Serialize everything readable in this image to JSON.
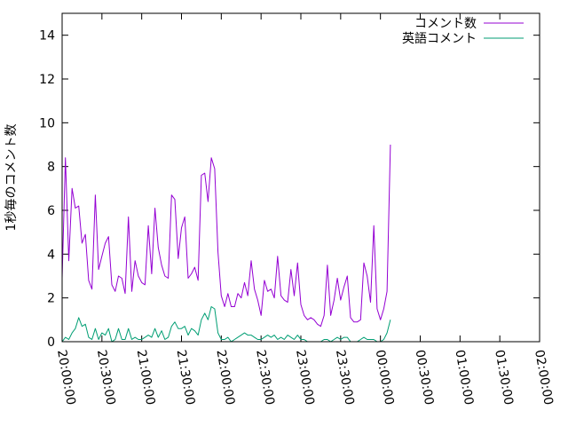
{
  "chart_data": {
    "type": "line",
    "title": "",
    "xlabel": "",
    "ylabel": "1秒毎のコメント数",
    "ylim": [
      0,
      15
    ],
    "yticks": [
      0,
      2,
      4,
      6,
      8,
      10,
      12,
      14
    ],
    "xlim": [
      "20:00:00",
      "02:00:00"
    ],
    "xticks": [
      "20:00:00",
      "20:30:00",
      "21:00:00",
      "21:30:00",
      "22:00:00",
      "22:30:00",
      "23:00:00",
      "23:30:00",
      "00:00:00",
      "00:30:00",
      "01:00:00",
      "01:30:00",
      "02:00:00"
    ],
    "legend_position": "top-right",
    "grid": false,
    "series": [
      {
        "name": "コメント数",
        "color": "#9400d3",
        "points": [
          [
            "20:00:00",
            2.9
          ],
          [
            "20:02:30",
            8.4
          ],
          [
            "20:05:00",
            3.7
          ],
          [
            "20:07:30",
            7.0
          ],
          [
            "20:10:00",
            6.1
          ],
          [
            "20:12:30",
            6.2
          ],
          [
            "20:15:00",
            4.5
          ],
          [
            "20:17:30",
            4.9
          ],
          [
            "20:20:00",
            2.8
          ],
          [
            "20:22:30",
            2.4
          ],
          [
            "20:25:00",
            6.7
          ],
          [
            "20:27:30",
            3.3
          ],
          [
            "20:30:00",
            3.9
          ],
          [
            "20:32:30",
            4.5
          ],
          [
            "20:35:00",
            4.8
          ],
          [
            "20:37:30",
            2.6
          ],
          [
            "20:40:00",
            2.3
          ],
          [
            "20:42:30",
            3.0
          ],
          [
            "20:45:00",
            2.9
          ],
          [
            "20:47:30",
            2.2
          ],
          [
            "20:50:00",
            5.7
          ],
          [
            "20:52:30",
            2.3
          ],
          [
            "20:55:00",
            3.7
          ],
          [
            "20:57:30",
            3.0
          ],
          [
            "21:00:00",
            2.7
          ],
          [
            "21:02:30",
            2.6
          ],
          [
            "21:05:00",
            5.3
          ],
          [
            "21:07:30",
            3.1
          ],
          [
            "21:10:00",
            6.1
          ],
          [
            "21:12:30",
            4.3
          ],
          [
            "21:15:00",
            3.5
          ],
          [
            "21:17:30",
            3.0
          ],
          [
            "21:20:00",
            2.9
          ],
          [
            "21:22:30",
            6.7
          ],
          [
            "21:25:00",
            6.5
          ],
          [
            "21:27:30",
            3.8
          ],
          [
            "21:30:00",
            5.2
          ],
          [
            "21:32:30",
            5.7
          ],
          [
            "21:35:00",
            2.9
          ],
          [
            "21:37:30",
            3.1
          ],
          [
            "21:40:00",
            3.4
          ],
          [
            "21:42:30",
            2.8
          ],
          [
            "21:45:00",
            7.6
          ],
          [
            "21:47:30",
            7.7
          ],
          [
            "21:50:00",
            6.4
          ],
          [
            "21:52:30",
            8.4
          ],
          [
            "21:55:00",
            7.9
          ],
          [
            "21:57:30",
            4.1
          ],
          [
            "22:00:00",
            2.1
          ],
          [
            "22:02:30",
            1.6
          ],
          [
            "22:05:00",
            2.2
          ],
          [
            "22:07:30",
            1.6
          ],
          [
            "22:10:00",
            1.6
          ],
          [
            "22:12:30",
            2.2
          ],
          [
            "22:15:00",
            2.0
          ],
          [
            "22:17:30",
            2.7
          ],
          [
            "22:20:00",
            2.1
          ],
          [
            "22:22:30",
            3.7
          ],
          [
            "22:25:00",
            2.4
          ],
          [
            "22:27:30",
            1.9
          ],
          [
            "22:30:00",
            1.2
          ],
          [
            "22:32:30",
            2.8
          ],
          [
            "22:35:00",
            2.3
          ],
          [
            "22:37:30",
            2.4
          ],
          [
            "22:40:00",
            2.0
          ],
          [
            "22:42:30",
            3.9
          ],
          [
            "22:45:00",
            2.1
          ],
          [
            "22:47:30",
            1.9
          ],
          [
            "22:50:00",
            1.8
          ],
          [
            "22:52:30",
            3.3
          ],
          [
            "22:55:00",
            2.1
          ],
          [
            "22:57:30",
            3.6
          ],
          [
            "23:00:00",
            1.7
          ],
          [
            "23:02:30",
            1.2
          ],
          [
            "23:05:00",
            1.0
          ],
          [
            "23:07:30",
            1.1
          ],
          [
            "23:10:00",
            1.0
          ],
          [
            "23:12:30",
            0.8
          ],
          [
            "23:15:00",
            0.7
          ],
          [
            "23:17:30",
            1.2
          ],
          [
            "23:20:00",
            3.5
          ],
          [
            "23:22:30",
            1.2
          ],
          [
            "23:25:00",
            1.9
          ],
          [
            "23:27:30",
            2.9
          ],
          [
            "23:30:00",
            1.9
          ],
          [
            "23:32:30",
            2.5
          ],
          [
            "23:35:00",
            3.0
          ],
          [
            "23:37:30",
            1.1
          ],
          [
            "23:40:00",
            0.9
          ],
          [
            "23:42:30",
            0.9
          ],
          [
            "23:45:00",
            1.0
          ],
          [
            "23:47:30",
            3.6
          ],
          [
            "23:50:00",
            3.0
          ],
          [
            "23:52:30",
            1.8
          ],
          [
            "23:55:00",
            5.3
          ],
          [
            "23:57:30",
            1.5
          ],
          [
            "00:00:00",
            1.0
          ],
          [
            "00:02:30",
            1.5
          ],
          [
            "00:05:00",
            2.3
          ],
          [
            "00:07:30",
            9.0
          ]
        ]
      },
      {
        "name": "英語コメント",
        "color": "#009e73",
        "points": [
          [
            "20:00:00",
            0.0
          ],
          [
            "20:02:30",
            0.2
          ],
          [
            "20:05:00",
            0.1
          ],
          [
            "20:07:30",
            0.4
          ],
          [
            "20:10:00",
            0.6
          ],
          [
            "20:12:30",
            1.1
          ],
          [
            "20:15:00",
            0.7
          ],
          [
            "20:17:30",
            0.8
          ],
          [
            "20:20:00",
            0.2
          ],
          [
            "20:22:30",
            0.1
          ],
          [
            "20:25:00",
            0.6
          ],
          [
            "20:27:30",
            0.1
          ],
          [
            "20:30:00",
            0.4
          ],
          [
            "20:32:30",
            0.3
          ],
          [
            "20:35:00",
            0.6
          ],
          [
            "20:37:30",
            0.0
          ],
          [
            "20:40:00",
            0.1
          ],
          [
            "20:42:30",
            0.6
          ],
          [
            "20:45:00",
            0.1
          ],
          [
            "20:47:30",
            0.1
          ],
          [
            "20:50:00",
            0.6
          ],
          [
            "20:52:30",
            0.1
          ],
          [
            "20:55:00",
            0.2
          ],
          [
            "20:57:30",
            0.1
          ],
          [
            "21:00:00",
            0.1
          ],
          [
            "21:02:30",
            0.2
          ],
          [
            "21:05:00",
            0.3
          ],
          [
            "21:07:30",
            0.2
          ],
          [
            "21:10:00",
            0.6
          ],
          [
            "21:12:30",
            0.2
          ],
          [
            "21:15:00",
            0.5
          ],
          [
            "21:17:30",
            0.1
          ],
          [
            "21:20:00",
            0.2
          ],
          [
            "21:22:30",
            0.7
          ],
          [
            "21:25:00",
            0.9
          ],
          [
            "21:27:30",
            0.6
          ],
          [
            "21:30:00",
            0.6
          ],
          [
            "21:32:30",
            0.7
          ],
          [
            "21:35:00",
            0.3
          ],
          [
            "21:37:30",
            0.6
          ],
          [
            "21:40:00",
            0.5
          ],
          [
            "21:42:30",
            0.3
          ],
          [
            "21:45:00",
            1.0
          ],
          [
            "21:47:30",
            1.3
          ],
          [
            "21:50:00",
            1.0
          ],
          [
            "21:52:30",
            1.6
          ],
          [
            "21:55:00",
            1.5
          ],
          [
            "21:57:30",
            0.4
          ],
          [
            "22:00:00",
            0.1
          ],
          [
            "22:02:30",
            0.1
          ],
          [
            "22:05:00",
            0.2
          ],
          [
            "22:07:30",
            0.0
          ],
          [
            "22:10:00",
            0.1
          ],
          [
            "22:12:30",
            0.2
          ],
          [
            "22:15:00",
            0.3
          ],
          [
            "22:17:30",
            0.4
          ],
          [
            "22:20:00",
            0.3
          ],
          [
            "22:22:30",
            0.3
          ],
          [
            "22:25:00",
            0.2
          ],
          [
            "22:27:30",
            0.1
          ],
          [
            "22:30:00",
            0.1
          ],
          [
            "22:32:30",
            0.2
          ],
          [
            "22:35:00",
            0.3
          ],
          [
            "22:37:30",
            0.2
          ],
          [
            "22:40:00",
            0.3
          ],
          [
            "22:42:30",
            0.1
          ],
          [
            "22:45:00",
            0.2
          ],
          [
            "22:47:30",
            0.1
          ],
          [
            "22:50:00",
            0.3
          ],
          [
            "22:52:30",
            0.2
          ],
          [
            "22:55:00",
            0.1
          ],
          [
            "22:57:30",
            0.3
          ],
          [
            "23:00:00",
            0.1
          ],
          [
            "23:02:30",
            0.1
          ],
          [
            "23:05:00",
            0.0
          ],
          [
            "23:07:30",
            0.0
          ],
          [
            "23:10:00",
            0.0
          ],
          [
            "23:12:30",
            0.0
          ],
          [
            "23:15:00",
            0.0
          ],
          [
            "23:17:30",
            0.1
          ],
          [
            "23:20:00",
            0.1
          ],
          [
            "23:22:30",
            0.0
          ],
          [
            "23:25:00",
            0.1
          ],
          [
            "23:27:30",
            0.2
          ],
          [
            "23:30:00",
            0.1
          ],
          [
            "23:32:30",
            0.2
          ],
          [
            "23:35:00",
            0.2
          ],
          [
            "23:37:30",
            0.0
          ],
          [
            "23:40:00",
            0.0
          ],
          [
            "23:42:30",
            0.0
          ],
          [
            "23:45:00",
            0.1
          ],
          [
            "23:47:30",
            0.2
          ],
          [
            "23:50:00",
            0.1
          ],
          [
            "23:52:30",
            0.1
          ],
          [
            "23:55:00",
            0.1
          ],
          [
            "23:57:30",
            0.0
          ],
          [
            "00:00:00",
            0.0
          ],
          [
            "00:02:30",
            0.1
          ],
          [
            "00:05:00",
            0.4
          ],
          [
            "00:07:30",
            1.0
          ]
        ]
      }
    ]
  }
}
